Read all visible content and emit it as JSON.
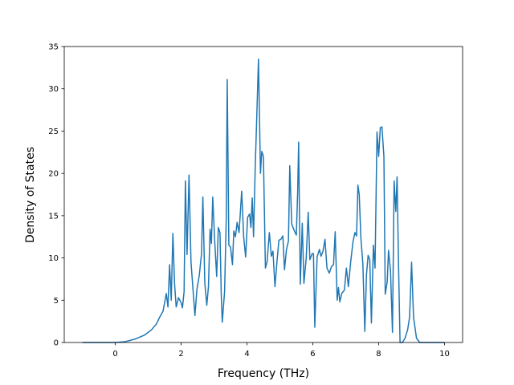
{
  "chart_data": {
    "type": "line",
    "xlabel": "Frequency (THz)",
    "ylabel": "Density of States",
    "xlim": [
      -1.55,
      10.55
    ],
    "ylim": [
      0,
      35
    ],
    "xticks": [
      0,
      2,
      4,
      6,
      8,
      10
    ],
    "yticks": [
      0,
      5,
      10,
      15,
      20,
      25,
      30,
      35
    ],
    "x": [
      -1,
      0,
      0.3,
      0.6,
      0.9,
      1.1,
      1.25,
      1.35,
      1.45,
      1.55,
      1.6,
      1.65,
      1.7,
      1.75,
      1.8,
      1.85,
      1.92,
      2.0,
      2.04,
      2.09,
      2.13,
      2.18,
      2.24,
      2.3,
      2.36,
      2.42,
      2.48,
      2.55,
      2.62,
      2.66,
      2.72,
      2.78,
      2.83,
      2.88,
      2.92,
      2.96,
      3.02,
      3.08,
      3.13,
      3.18,
      3.22,
      3.25,
      3.32,
      3.37,
      3.4,
      3.45,
      3.5,
      3.56,
      3.6,
      3.65,
      3.7,
      3.76,
      3.84,
      3.9,
      3.96,
      4.02,
      4.08,
      4.12,
      4.16,
      4.2,
      4.25,
      4.3,
      4.35,
      4.41,
      4.45,
      4.5,
      4.56,
      4.61,
      4.68,
      4.74,
      4.79,
      4.85,
      4.91,
      4.97,
      5.03,
      5.09,
      5.14,
      5.2,
      5.26,
      5.3,
      5.36,
      5.44,
      5.5,
      5.54,
      5.57,
      5.62,
      5.68,
      5.73,
      5.8,
      5.86,
      5.91,
      5.98,
      6.02,
      6.06,
      6.13,
      6.2,
      6.25,
      6.31,
      6.37,
      6.43,
      6.5,
      6.57,
      6.63,
      6.68,
      6.74,
      6.78,
      6.82,
      6.88,
      6.96,
      7.02,
      7.08,
      7.15,
      7.22,
      7.28,
      7.33,
      7.37,
      7.41,
      7.46,
      7.52,
      7.58,
      7.63,
      7.68,
      7.73,
      7.78,
      7.84,
      7.89,
      7.95,
      8.0,
      8.05,
      8.1,
      8.16,
      8.2,
      8.26,
      8.3,
      8.36,
      8.42,
      8.47,
      8.52,
      8.56,
      8.6,
      8.65,
      8.72,
      8.8,
      8.88,
      8.94,
      9.0,
      9.06,
      9.15,
      9.25,
      10.0
    ],
    "series": [
      {
        "color": "#1f77b4",
        "values": [
          0,
          0,
          0.1,
          0.4,
          0.9,
          1.5,
          2.2,
          3.0,
          3.7,
          5.8,
          4.2,
          9.2,
          5.0,
          12.9,
          7.0,
          4.2,
          5.3,
          4.7,
          4.1,
          6.0,
          19.1,
          10.4,
          19.8,
          9.5,
          6.3,
          3.2,
          6.3,
          7.9,
          10.5,
          17.2,
          7.0,
          4.4,
          6.6,
          13.4,
          11.7,
          17.2,
          12.0,
          7.8,
          13.6,
          13.0,
          5.5,
          2.4,
          6.0,
          14.5,
          31.1,
          11.5,
          11.3,
          9.2,
          13.2,
          12.5,
          14.2,
          13.0,
          17.9,
          12.5,
          10.1,
          14.8,
          15.2,
          13.6,
          17.1,
          12.5,
          20.5,
          27.0,
          33.5,
          20.0,
          22.6,
          22.0,
          8.8,
          9.5,
          13.0,
          10.2,
          10.8,
          6.6,
          9.5,
          12.1,
          12.2,
          12.6,
          8.6,
          11.0,
          12.0,
          20.9,
          14.0,
          13.2,
          12.7,
          17.8,
          23.7,
          6.9,
          14.1,
          7.0,
          10.0,
          15.4,
          9.8,
          10.5,
          10.5,
          1.8,
          10.1,
          11.0,
          10.2,
          10.8,
          12.2,
          8.8,
          8.2,
          9.0,
          9.2,
          13.1,
          5.0,
          6.5,
          4.8,
          5.8,
          6.2,
          8.8,
          6.6,
          9.5,
          11.9,
          13.0,
          12.6,
          18.6,
          17.5,
          12.4,
          9.3,
          1.3,
          8.0,
          10.3,
          9.8,
          2.3,
          11.5,
          8.8,
          24.9,
          22.0,
          25.4,
          25.5,
          22.0,
          5.7,
          7.2,
          10.9,
          8.5,
          1.2,
          19.1,
          15.5,
          19.6,
          10.0,
          0,
          0,
          0.5,
          1.5,
          3.0,
          9.5,
          3.0,
          0.5,
          0,
          0
        ]
      }
    ]
  }
}
